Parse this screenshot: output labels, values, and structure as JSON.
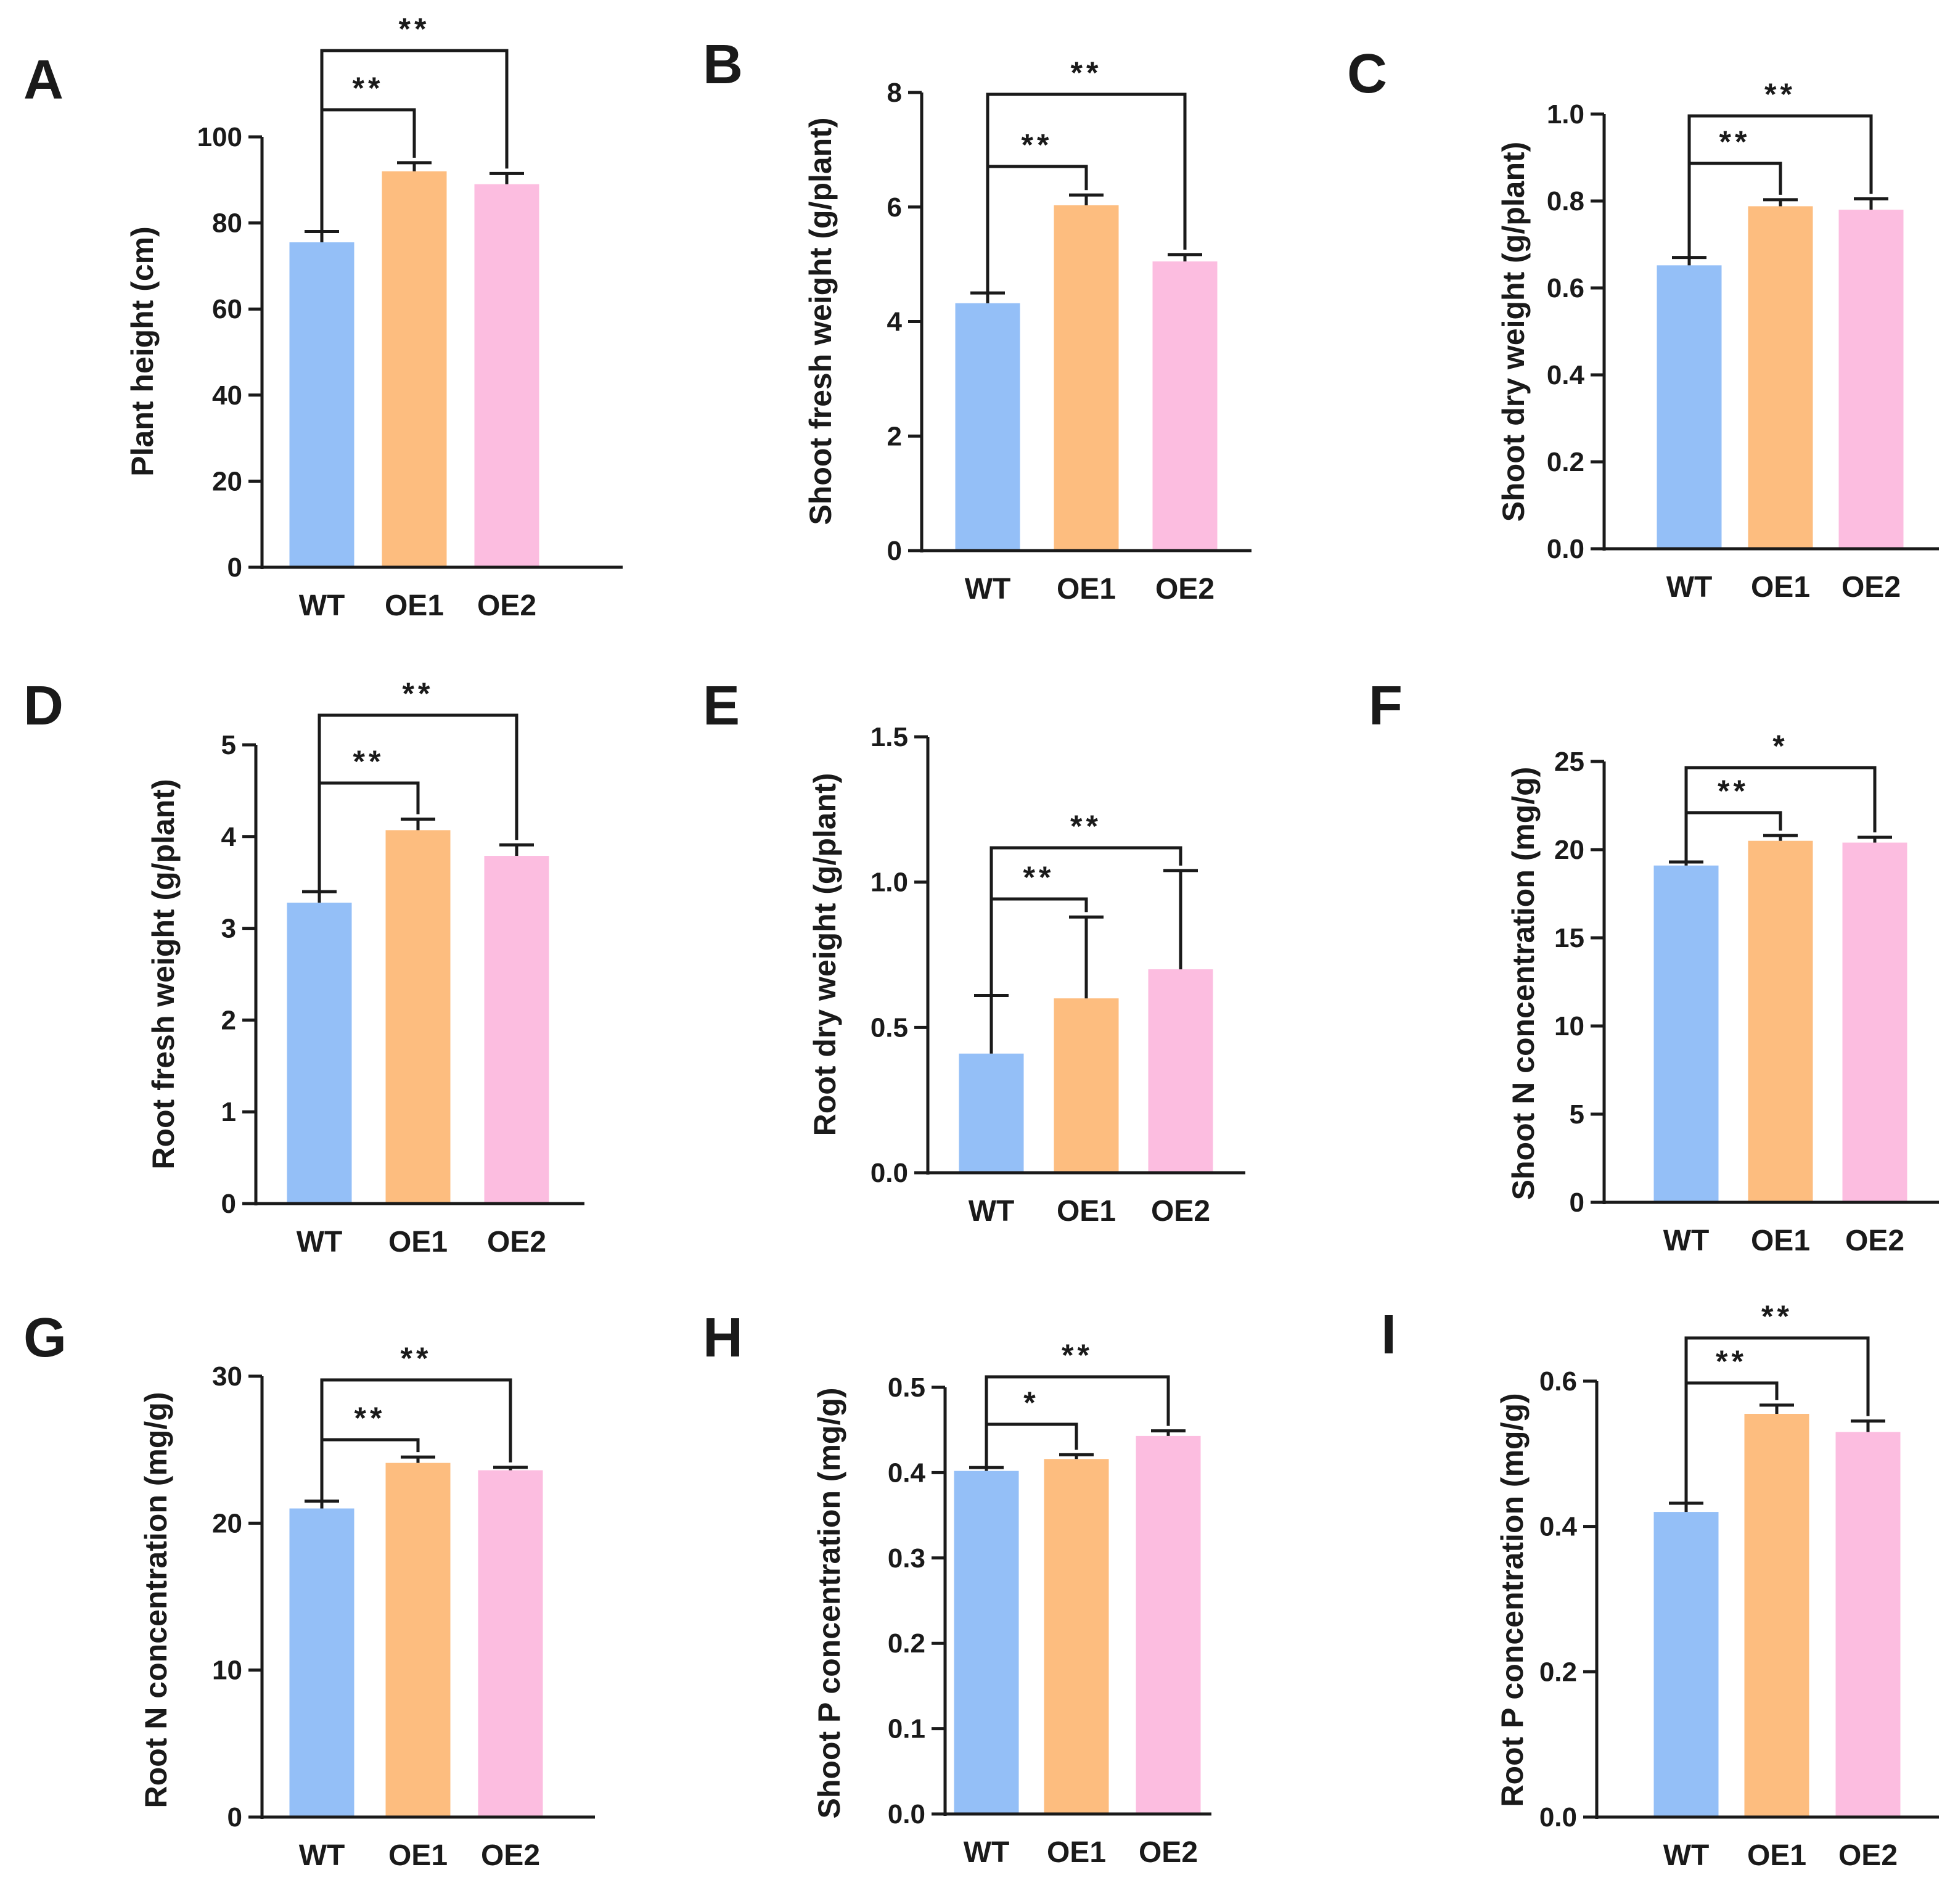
{
  "colors": {
    "WT": "#94bff7",
    "OE1": "#fdbd7f",
    "OE2": "#fcbde0",
    "axis": "#1a1a1a"
  },
  "chart_data": [
    {
      "type": "bar",
      "panel": "A",
      "ylabel": "Plant height (cm)",
      "categories": [
        "WT",
        "OE1",
        "OE2"
      ],
      "values": [
        75.5,
        92,
        89
      ],
      "errors": [
        2.5,
        2,
        2.5
      ],
      "ylim": [
        0,
        100
      ],
      "yticks": [
        "0",
        "20",
        "40",
        "60",
        "80",
        "100"
      ],
      "significance": [
        {
          "from": "WT",
          "to": "OE1",
          "label": "**"
        },
        {
          "from": "WT",
          "to": "OE2",
          "label": "**"
        }
      ]
    },
    {
      "type": "bar",
      "panel": "B",
      "ylabel": "Shoot fresh weight (g/plant)",
      "categories": [
        "WT",
        "OE1",
        "OE2"
      ],
      "values": [
        4.32,
        6.03,
        5.05
      ],
      "errors": [
        0.18,
        0.18,
        0.12
      ],
      "ylim": [
        0,
        8
      ],
      "yticks": [
        "0",
        "2",
        "4",
        "6",
        "8"
      ],
      "significance": [
        {
          "from": "WT",
          "to": "OE1",
          "label": "**"
        },
        {
          "from": "WT",
          "to": "OE2",
          "label": "**"
        }
      ]
    },
    {
      "type": "bar",
      "panel": "C",
      "ylabel": "Shoot dry weight (g/plant)",
      "categories": [
        "WT",
        "OE1",
        "OE2"
      ],
      "values": [
        0.652,
        0.788,
        0.78
      ],
      "errors": [
        0.018,
        0.015,
        0.025
      ],
      "ylim": [
        0,
        1.0
      ],
      "yticks": [
        "0.0",
        "0.2",
        "0.4",
        "0.6",
        "0.8",
        "1.0"
      ],
      "significance": [
        {
          "from": "WT",
          "to": "OE1",
          "label": "**"
        },
        {
          "from": "WT",
          "to": "OE2",
          "label": "**"
        }
      ]
    },
    {
      "type": "bar",
      "panel": "D",
      "ylabel": "Root fresh weight (g/plant)",
      "categories": [
        "WT",
        "OE1",
        "OE2"
      ],
      "values": [
        3.28,
        4.07,
        3.79
      ],
      "errors": [
        0.12,
        0.12,
        0.12
      ],
      "ylim": [
        0,
        5
      ],
      "yticks": [
        "0",
        "1",
        "2",
        "3",
        "4",
        "5"
      ],
      "significance": [
        {
          "from": "WT",
          "to": "OE1",
          "label": "**"
        },
        {
          "from": "WT",
          "to": "OE2",
          "label": "**"
        }
      ]
    },
    {
      "type": "bar",
      "panel": "E",
      "ylabel": "Root dry weight (g/plant)",
      "categories": [
        "WT",
        "OE1",
        "OE2"
      ],
      "values": [
        0.41,
        0.6,
        0.7
      ],
      "errors": [
        0.2,
        0.28,
        0.34
      ],
      "ylim": [
        0,
        1.5
      ],
      "yticks": [
        "0.0",
        "0.5",
        "1.0",
        "1.5"
      ],
      "significance": [
        {
          "from": "WT",
          "to": "OE1",
          "label": "**"
        },
        {
          "from": "WT",
          "to": "OE2",
          "label": "**"
        }
      ]
    },
    {
      "type": "bar",
      "panel": "F",
      "ylabel": "Shoot N concentration (mg/g)",
      "categories": [
        "WT",
        "OE1",
        "OE2"
      ],
      "values": [
        19.1,
        20.5,
        20.4
      ],
      "errors": [
        0.2,
        0.3,
        0.3
      ],
      "ylim": [
        0,
        25
      ],
      "yticks": [
        "0",
        "5",
        "10",
        "15",
        "20",
        "25"
      ],
      "significance": [
        {
          "from": "WT",
          "to": "OE1",
          "label": "**"
        },
        {
          "from": "WT",
          "to": "OE2",
          "label": "*"
        }
      ]
    },
    {
      "type": "bar",
      "panel": "G",
      "ylabel": "Root N concentration (mg/g)",
      "categories": [
        "WT",
        "OE1",
        "OE2"
      ],
      "values": [
        21,
        24.1,
        23.6
      ],
      "errors": [
        0.5,
        0.4,
        0.2
      ],
      "ylim": [
        0,
        30
      ],
      "yticks": [
        "0",
        "10",
        "20",
        "30"
      ],
      "significance": [
        {
          "from": "WT",
          "to": "OE1",
          "label": "**"
        },
        {
          "from": "WT",
          "to": "OE2",
          "label": "**"
        }
      ]
    },
    {
      "type": "bar",
      "panel": "H",
      "ylabel": "Shoot P concentration (mg/g)",
      "categories": [
        "WT",
        "OE1",
        "OE2"
      ],
      "values": [
        0.402,
        0.416,
        0.443
      ],
      "errors": [
        0.004,
        0.005,
        0.006
      ],
      "ylim": [
        0,
        0.5
      ],
      "yticks": [
        "0.0",
        "0.1",
        "0.2",
        "0.3",
        "0.4",
        "0.5"
      ],
      "significance": [
        {
          "from": "WT",
          "to": "OE1",
          "label": "*"
        },
        {
          "from": "WT",
          "to": "OE2",
          "label": "**"
        }
      ]
    },
    {
      "type": "bar",
      "panel": "I",
      "ylabel": "Root P concentration (mg/g)",
      "categories": [
        "WT",
        "OE1",
        "OE2"
      ],
      "values": [
        0.42,
        0.555,
        0.53
      ],
      "errors": [
        0.012,
        0.012,
        0.015
      ],
      "ylim": [
        0,
        0.6
      ],
      "yticks": [
        "0.0",
        "0.2",
        "0.4",
        "0.6"
      ],
      "significance": [
        {
          "from": "WT",
          "to": "OE1",
          "label": "**"
        },
        {
          "from": "WT",
          "to": "OE2",
          "label": "**"
        }
      ]
    }
  ]
}
